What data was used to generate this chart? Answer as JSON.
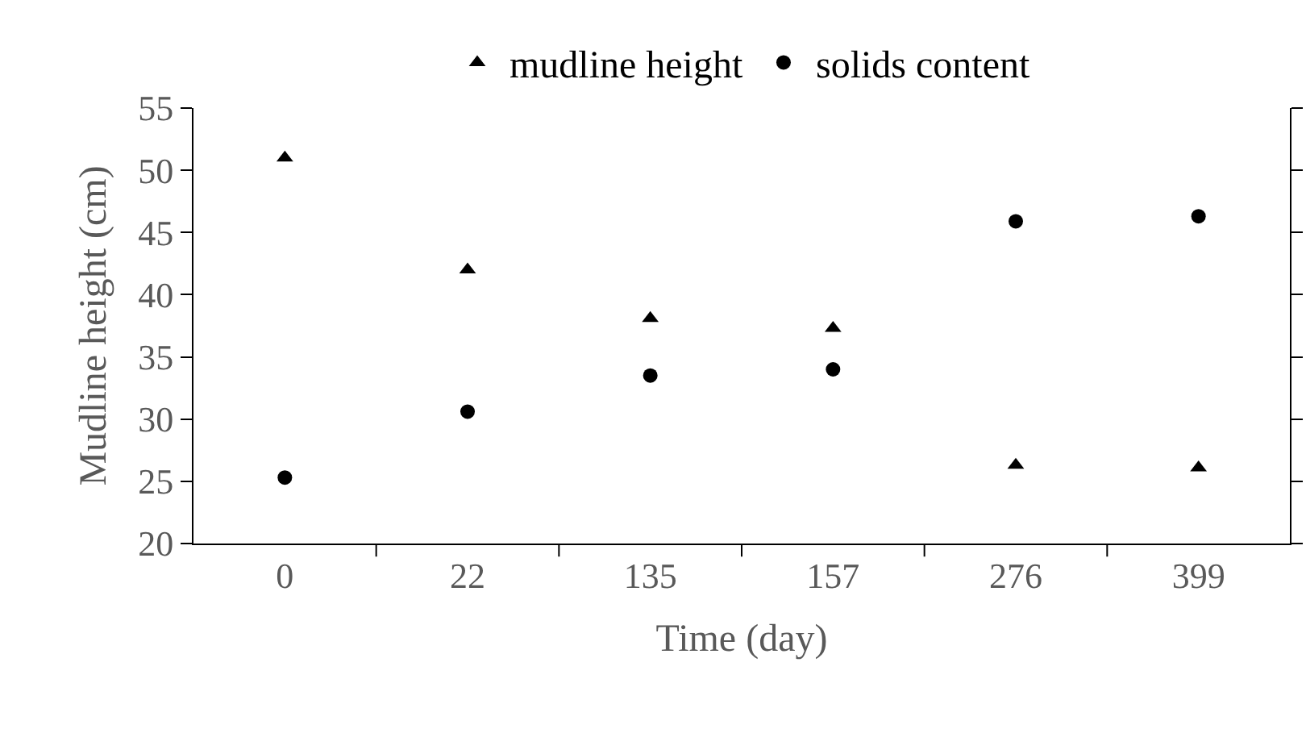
{
  "chart_data": {
    "type": "scatter",
    "xlabel": "Time (day)",
    "ylabel": "Mudline height (cm)",
    "categories": [
      "0",
      "22",
      "135",
      "157",
      "276",
      "399"
    ],
    "series": [
      {
        "name": "mudline height",
        "color": "#000000",
        "marker": "triangle",
        "values": [
          51.0,
          42.0,
          38.1,
          37.3,
          26.3,
          26.1
        ]
      },
      {
        "name": "solids content",
        "color": "#000000",
        "marker": "circle",
        "values": [
          25.3,
          30.6,
          33.5,
          34.0,
          45.9,
          46.3
        ]
      }
    ],
    "ylim": [
      20,
      55
    ],
    "yticks": [
      20,
      25,
      30,
      35,
      40,
      45,
      50,
      55
    ],
    "grid": false,
    "legend": "top"
  }
}
